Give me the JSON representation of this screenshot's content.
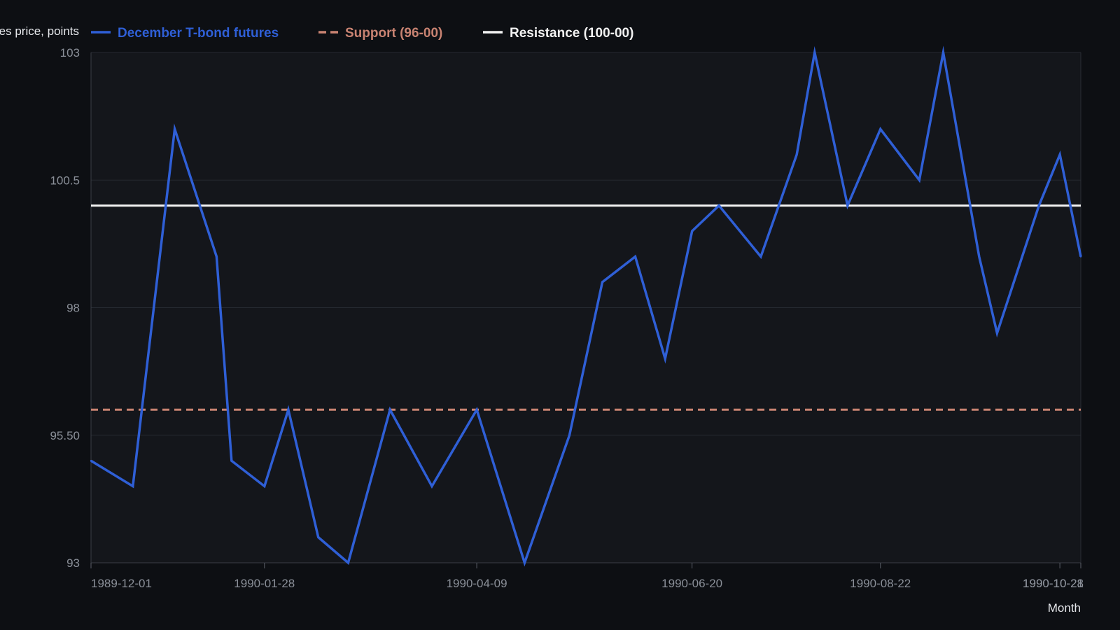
{
  "chart_data": {
    "type": "line",
    "xlabel": "Month",
    "ylabel": "Futures price, points",
    "ylim": [
      93,
      103
    ],
    "y_ticks": [
      {
        "value": 103,
        "label": "103"
      },
      {
        "value": 100.5,
        "label": "100.5"
      },
      {
        "value": 98,
        "label": "98"
      },
      {
        "value": 95.5,
        "label": "95.50"
      },
      {
        "value": 93,
        "label": "93"
      }
    ],
    "x_range": [
      "1989-12-01",
      "1990-10-28"
    ],
    "x_ticks": [
      "1989-12-01",
      "1990-01-28",
      "1990-04-09",
      "1990-06-20",
      "1990-08-22",
      "1990-10-21",
      "1990-10-28"
    ],
    "grid": true,
    "legend_position": "top",
    "series": [
      {
        "name": "December T-bond futures",
        "color": "#2f5fd6",
        "style": "solid",
        "x": [
          "1989-12-01",
          "1989-12-15",
          "1989-12-29",
          "1990-01-12",
          "1990-01-17",
          "1990-01-28",
          "1990-02-05",
          "1990-02-15",
          "1990-02-25",
          "1990-03-11",
          "1990-03-25",
          "1990-04-09",
          "1990-04-25",
          "1990-05-10",
          "1990-05-21",
          "1990-06-01",
          "1990-06-11",
          "1990-06-20",
          "1990-06-29",
          "1990-07-13",
          "1990-07-25",
          "1990-07-31",
          "1990-08-11",
          "1990-08-22",
          "1990-09-04",
          "1990-09-12",
          "1990-09-24",
          "1990-09-30",
          "1990-10-14",
          "1990-10-21",
          "1990-10-28"
        ],
        "values": [
          95,
          94.5,
          101.5,
          99,
          95,
          94.5,
          96,
          93.5,
          93,
          96,
          94.5,
          96,
          93,
          95.5,
          98.5,
          99,
          97,
          99.5,
          100,
          99,
          101,
          103,
          100,
          101.5,
          100.5,
          103,
          99,
          97.5,
          100,
          101,
          99
        ]
      },
      {
        "name": "Support (96-00)",
        "color": "#c98372",
        "style": "dashed",
        "constant": 96
      },
      {
        "name": "Resistance (100-00)",
        "color": "#f2f2f2",
        "style": "solid",
        "constant": 100
      }
    ]
  }
}
